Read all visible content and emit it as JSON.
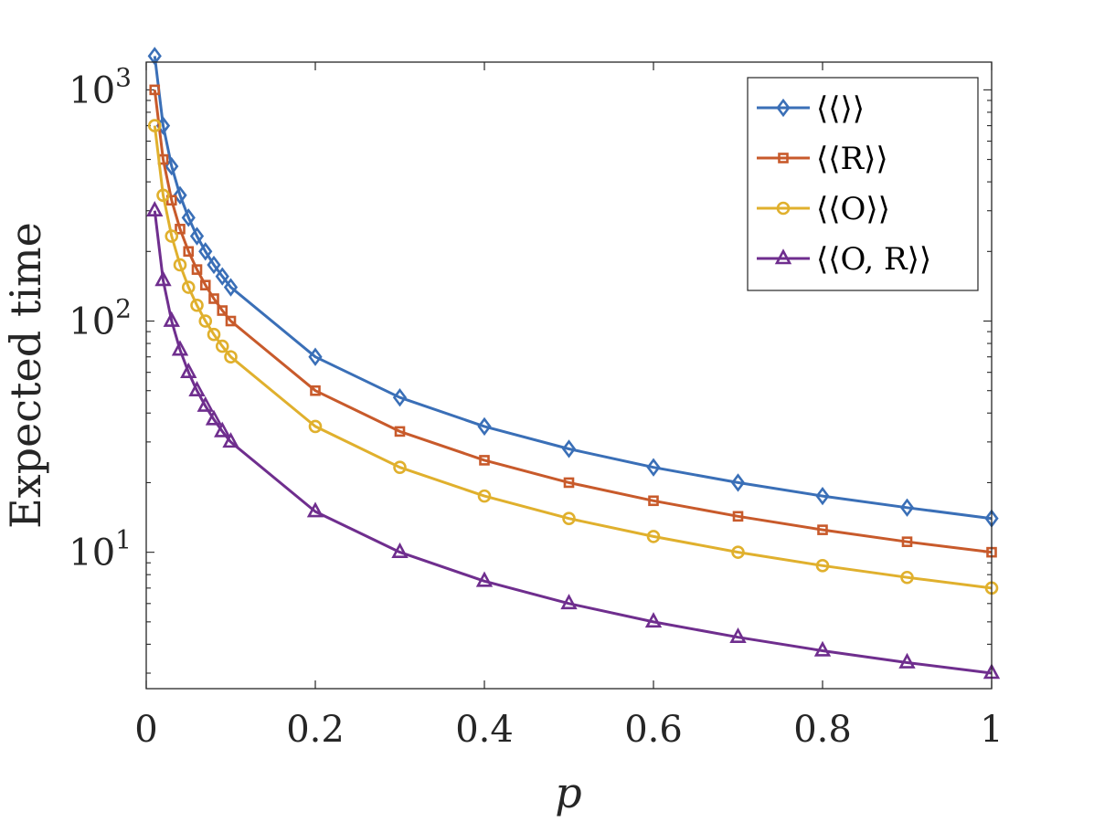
{
  "chart_data": {
    "type": "line",
    "title": "",
    "xlabel": "p",
    "ylabel": "Expected time",
    "xlim": [
      0,
      1
    ],
    "ylim_log10": [
      0.41,
      3.12
    ],
    "yscale": "log",
    "grid": false,
    "legend_position": "top-right",
    "x_ticks": [
      0,
      0.2,
      0.4,
      0.6,
      0.8,
      1
    ],
    "x_tick_labels": [
      "0",
      "0.2",
      "0.4",
      "0.6",
      "0.8",
      "1"
    ],
    "y_ticks": [
      10,
      100,
      1000
    ],
    "y_tick_base": "10",
    "y_tick_exponents": [
      "1",
      "2",
      "3"
    ],
    "x": [
      0.01,
      0.02,
      0.03,
      0.04,
      0.05,
      0.06,
      0.07,
      0.08,
      0.09,
      0.1,
      0.2,
      0.3,
      0.4,
      0.5,
      0.6,
      0.7,
      0.8,
      0.9,
      1.0
    ],
    "series": [
      {
        "name": "⟨⟨⟩⟩",
        "color": "#3a6fb7",
        "marker": "diamond",
        "values": [
          1400,
          700,
          467,
          350,
          280,
          233,
          200,
          175,
          156,
          140,
          70,
          46.7,
          35,
          28,
          23.3,
          20,
          17.5,
          15.6,
          14
        ]
      },
      {
        "name": "⟨⟨R⟩⟩",
        "color": "#c85a2b",
        "marker": "square",
        "values": [
          1000,
          500,
          333,
          250,
          200,
          167,
          143,
          125,
          111,
          100,
          50,
          33.3,
          25,
          20,
          16.7,
          14.3,
          12.5,
          11.1,
          10
        ]
      },
      {
        "name": "⟨⟨O⟩⟩",
        "color": "#e0b02d",
        "marker": "circle",
        "values": [
          700,
          350,
          233,
          175,
          140,
          117,
          100,
          87.5,
          77.8,
          70,
          35,
          23.3,
          17.5,
          14,
          11.7,
          10,
          8.75,
          7.78,
          7
        ]
      },
      {
        "name": "⟨⟨O, R⟩⟩",
        "color": "#6f2e8e",
        "marker": "triangle",
        "values": [
          300,
          150,
          100,
          75,
          60,
          50,
          42.9,
          37.5,
          33.3,
          30,
          15,
          10,
          7.5,
          6,
          5,
          4.29,
          3.75,
          3.33,
          3
        ]
      }
    ]
  }
}
